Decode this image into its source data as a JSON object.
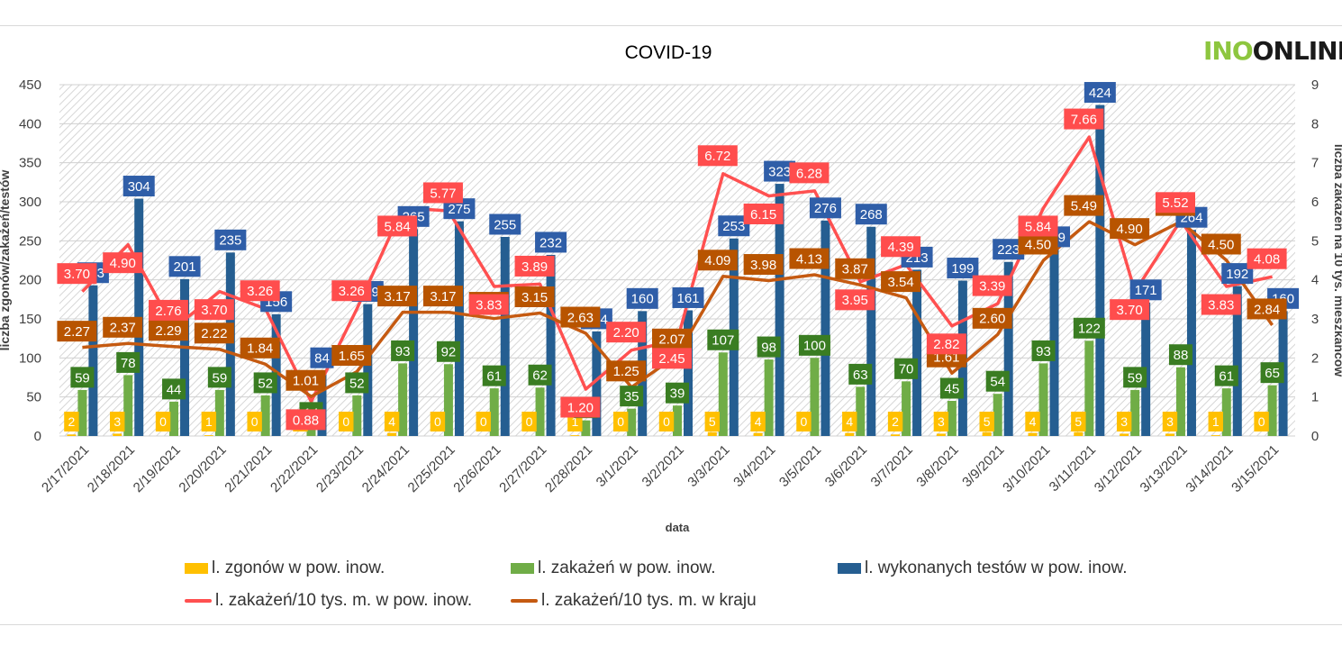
{
  "logo": {
    "part1": "INO",
    "part2": "ONLINE"
  },
  "chart_data": {
    "type": "bar",
    "title": "COVID-19",
    "xlabel": "data",
    "ylabel": "liczba zgonów/zakażeń/testów",
    "y2label": "liczba zakażeń na 10 tys. mieszkańców",
    "ylim": [
      0,
      450
    ],
    "y2lim": [
      0,
      9
    ],
    "yticks": [
      "0",
      "50",
      "100",
      "150",
      "200",
      "250",
      "300",
      "350",
      "400",
      "450"
    ],
    "y2ticks": [
      "0",
      "1",
      "2",
      "3",
      "4",
      "5",
      "6",
      "7",
      "8",
      "9"
    ],
    "categories": [
      "2/17/2021",
      "2/18/2021",
      "2/19/2021",
      "2/20/2021",
      "2/21/2021",
      "2/22/2021",
      "2/23/2021",
      "2/24/2021",
      "2/25/2021",
      "2/26/2021",
      "2/27/2021",
      "2/28/2021",
      "3/1/2021",
      "3/2/2021",
      "3/3/2021",
      "3/4/2021",
      "3/5/2021",
      "3/6/2021",
      "3/7/2021",
      "3/8/2021",
      "3/9/2021",
      "3/10/2021",
      "3/11/2021",
      "3/12/2021",
      "3/13/2021",
      "3/14/2021",
      "3/15/2021"
    ],
    "series": [
      {
        "name": "l. zgonów w pow. inow.",
        "type": "bar",
        "axis": "left",
        "color": "#ffc000",
        "values": [
          2,
          3,
          0,
          1,
          0,
          0,
          0,
          4,
          0,
          0,
          0,
          1,
          0,
          0,
          5,
          4,
          0,
          4,
          2,
          3,
          5,
          4,
          5,
          3,
          3,
          1,
          0
        ],
        "labels": [
          "2",
          "3",
          "0",
          "1",
          "0",
          "0",
          "0",
          "4",
          "0",
          "0",
          "0",
          "1",
          "0",
          "0",
          "5",
          "4",
          "0",
          "4",
          "2",
          "3",
          "5",
          "4",
          "5",
          "3",
          "3",
          "1",
          "0"
        ]
      },
      {
        "name": "l. zakażeń w pow. inow.",
        "type": "bar",
        "axis": "left",
        "color": "#70ad47",
        "values": [
          59,
          78,
          44,
          59,
          52,
          14,
          52,
          93,
          92,
          61,
          62,
          20,
          35,
          39,
          107,
          98,
          100,
          63,
          70,
          45,
          54,
          93,
          122,
          59,
          88,
          61,
          65
        ],
        "labels": [
          "59",
          "78",
          "44",
          "59",
          "52",
          "14",
          "52",
          "93",
          "92",
          "61",
          "62",
          "20",
          "35",
          "39",
          "107",
          "98",
          "100",
          "63",
          "70",
          "45",
          "54",
          "93",
          "122",
          "59",
          "88",
          "61",
          "65"
        ]
      },
      {
        "name": "l. wykonanych testów w pow. inow.",
        "type": "bar",
        "axis": "left",
        "color": "#255e91",
        "values": [
          193,
          304,
          201,
          235,
          156,
          84,
          169,
          265,
          275,
          255,
          232,
          134,
          160,
          161,
          253,
          323,
          276,
          268,
          213,
          199,
          223,
          239,
          424,
          171,
          264,
          192,
          160
        ],
        "labels": [
          "193",
          "304",
          "201",
          "235",
          "156",
          "84",
          "169",
          "265",
          "275",
          "255",
          "232",
          "134",
          "160",
          "161",
          "253",
          "323",
          "276",
          "268",
          "213",
          "199",
          "223",
          "239",
          "424",
          "171",
          "264",
          "192",
          "160"
        ]
      },
      {
        "name": "l. zakażeń/10 tys. m. w pow. inow.",
        "type": "line",
        "axis": "right",
        "color": "#ff5050",
        "values": [
          3.7,
          4.9,
          2.76,
          3.7,
          3.26,
          0.88,
          3.26,
          5.84,
          5.77,
          3.83,
          3.89,
          1.2,
          2.2,
          2.45,
          6.72,
          6.15,
          6.28,
          3.95,
          4.39,
          2.82,
          3.39,
          5.84,
          7.66,
          3.7,
          5.52,
          3.83,
          4.08
        ],
        "labels": [
          "3.70",
          "4.90",
          "2.76",
          "3.70",
          "3.26",
          "0.88",
          "3.26",
          "5.84",
          "5.77",
          "3.83",
          "3.89",
          "1.20",
          "2.20",
          "2.45",
          "6.72",
          "6.15",
          "6.28",
          "3.95",
          "4.39",
          "2.82",
          "3.39",
          "5.84",
          "7.66",
          "3.70",
          "5.52",
          "3.83",
          "4.08"
        ]
      },
      {
        "name": "l. zakażeń/10 tys. m. w kraju",
        "type": "line",
        "axis": "right",
        "color": "#c55a11",
        "values": [
          2.27,
          2.37,
          2.29,
          2.22,
          1.84,
          1.01,
          1.65,
          3.17,
          3.17,
          3.01,
          3.15,
          2.63,
          1.25,
          2.07,
          4.09,
          3.98,
          4.13,
          3.87,
          3.54,
          1.61,
          2.6,
          4.5,
          5.49,
          4.9,
          5.49,
          4.5,
          2.84
        ],
        "labels": [
          "2.27",
          "2.37",
          "2.29",
          "2.22",
          "1.84",
          "1.01",
          "1.65",
          "3.17",
          "3.17",
          "3.01",
          "3.15",
          "2.63",
          "1.25",
          "2.07",
          "4.09",
          "3.98",
          "4.13",
          "3.87",
          "3.54",
          "1.61",
          "2.60",
          "4.50",
          "5.49",
          "4.90",
          "5.49",
          "4.50",
          "2.84"
        ]
      }
    ],
    "legend_position": "bottom",
    "grid": true
  }
}
